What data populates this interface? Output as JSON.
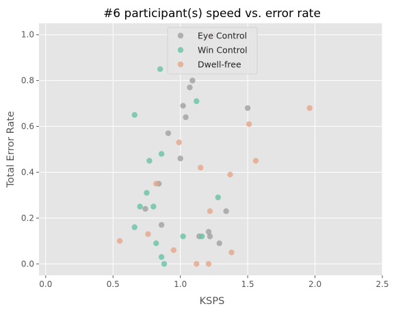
{
  "chart_data": {
    "type": "scatter",
    "title": "#6 participant(s) speed vs. error rate",
    "xlabel": "KSPS",
    "ylabel": "Total Error Rate",
    "xlim": [
      -0.05,
      2.5
    ],
    "ylim": [
      -0.05,
      1.05
    ],
    "xticks": [
      0.0,
      0.5,
      1.0,
      1.5,
      2.0,
      2.5
    ],
    "xtick_labels": [
      "0.0",
      "0.5",
      "1.0",
      "1.5",
      "2.0",
      "2.5"
    ],
    "yticks": [
      0.0,
      0.2,
      0.4,
      0.6,
      0.8,
      1.0
    ],
    "ytick_labels": [
      "0.0",
      "0.2",
      "0.4",
      "0.6",
      "0.8",
      "1.0"
    ],
    "grid": true,
    "legend_position": "upper-center",
    "series": [
      {
        "name": "Eye Control",
        "color": "#a0a0a0",
        "points": [
          {
            "x": 1.09,
            "y": 0.8
          },
          {
            "x": 1.07,
            "y": 0.77
          },
          {
            "x": 1.02,
            "y": 0.69
          },
          {
            "x": 1.04,
            "y": 0.64
          },
          {
            "x": 1.5,
            "y": 0.68
          },
          {
            "x": 0.91,
            "y": 0.57
          },
          {
            "x": 1.0,
            "y": 0.46
          },
          {
            "x": 0.84,
            "y": 0.35
          },
          {
            "x": 0.74,
            "y": 0.24
          },
          {
            "x": 1.34,
            "y": 0.23
          },
          {
            "x": 0.86,
            "y": 0.17
          },
          {
            "x": 1.21,
            "y": 0.14
          },
          {
            "x": 1.14,
            "y": 0.12
          },
          {
            "x": 1.22,
            "y": 0.12
          },
          {
            "x": 1.29,
            "y": 0.09
          }
        ]
      },
      {
        "name": "Win Control",
        "color": "#66c2a5",
        "points": [
          {
            "x": 0.85,
            "y": 0.85
          },
          {
            "x": 1.12,
            "y": 0.71
          },
          {
            "x": 0.66,
            "y": 0.65
          },
          {
            "x": 0.86,
            "y": 0.48
          },
          {
            "x": 0.77,
            "y": 0.45
          },
          {
            "x": 0.75,
            "y": 0.31
          },
          {
            "x": 1.28,
            "y": 0.29
          },
          {
            "x": 0.7,
            "y": 0.25
          },
          {
            "x": 0.8,
            "y": 0.25
          },
          {
            "x": 0.66,
            "y": 0.16
          },
          {
            "x": 1.02,
            "y": 0.12
          },
          {
            "x": 1.16,
            "y": 0.12
          },
          {
            "x": 0.82,
            "y": 0.09
          },
          {
            "x": 0.86,
            "y": 0.03
          },
          {
            "x": 0.88,
            "y": 0.0
          }
        ]
      },
      {
        "name": "Dwell-free",
        "color": "#e5a689",
        "points": [
          {
            "x": 1.96,
            "y": 0.68
          },
          {
            "x": 1.51,
            "y": 0.61
          },
          {
            "x": 0.99,
            "y": 0.53
          },
          {
            "x": 1.56,
            "y": 0.45
          },
          {
            "x": 1.15,
            "y": 0.42
          },
          {
            "x": 1.37,
            "y": 0.39
          },
          {
            "x": 0.82,
            "y": 0.35
          },
          {
            "x": 1.22,
            "y": 0.23
          },
          {
            "x": 0.76,
            "y": 0.13
          },
          {
            "x": 0.55,
            "y": 0.1
          },
          {
            "x": 0.95,
            "y": 0.06
          },
          {
            "x": 1.38,
            "y": 0.05
          },
          {
            "x": 1.12,
            "y": 0.0
          },
          {
            "x": 1.21,
            "y": 0.0
          },
          {
            "x": 1.24,
            "y": 1.0
          }
        ]
      }
    ]
  }
}
